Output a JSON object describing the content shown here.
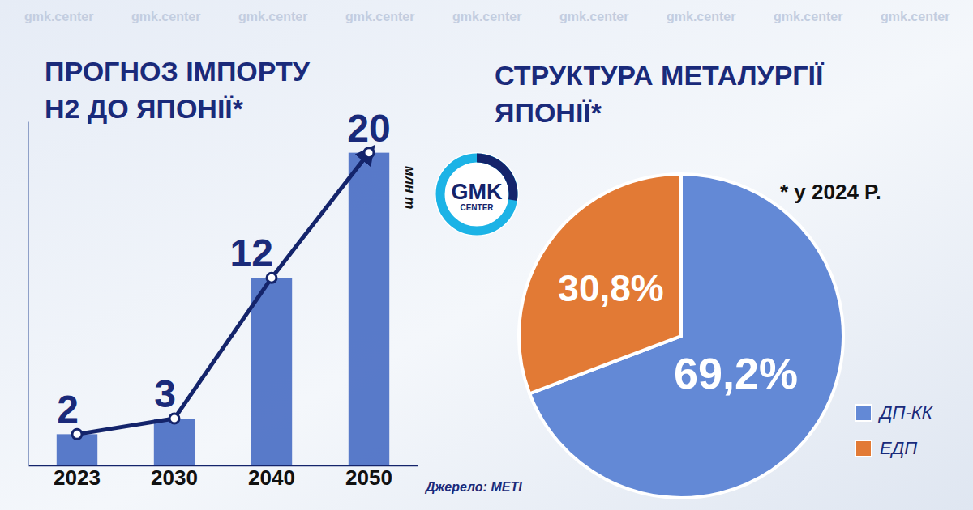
{
  "chart_data": [
    {
      "type": "bar",
      "title": "ПРОГНОЗ ІМПОРТУ Н2 ДО ЯПОНІЇ*",
      "categories": [
        "2023",
        "2030",
        "2040",
        "2050"
      ],
      "values": [
        2,
        3,
        12,
        20
      ],
      "color": "#4b6fc4",
      "ylim": [
        0,
        22
      ],
      "ylabel": "млн т",
      "data_labels": true,
      "tick_labels": "x",
      "marker": "circle",
      "line_style": "solid",
      "source": "Джерело: METI"
    },
    {
      "type": "pie",
      "title": "СТРУКТУРА МЕТАЛУРГІЇ ЯПОНІЇ*",
      "subtitle": "* у 2024 Р.",
      "categories": [
        "ДП-КК",
        "ЕДП"
      ],
      "values": [
        69.2,
        30.8
      ],
      "value_labels": [
        "69,2%",
        "30,8%"
      ],
      "colors": [
        "#6389d6",
        "#e27a35"
      ],
      "data_labels": true,
      "legend": "bottom-right"
    }
  ],
  "logo": [
    "GMK",
    "CENTER"
  ],
  "watermark": "gmk.center"
}
